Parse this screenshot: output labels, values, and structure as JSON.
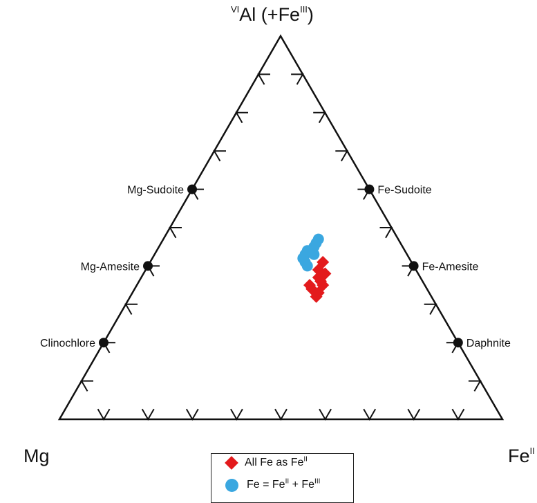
{
  "chart_data": {
    "type": "ternary-scatter",
    "apices": {
      "top": {
        "sup": "VI",
        "main": "Al (+Fe",
        "sup2": "III",
        "tail": ")"
      },
      "left": "Mg",
      "right": {
        "main": "Fe",
        "sup": "II"
      }
    },
    "end_members": [
      {
        "name": "Mg-Sudoite",
        "top": 0.6,
        "left": 0.4,
        "right": 0.0,
        "label_side": "left"
      },
      {
        "name": "Mg-Amesite",
        "top": 0.4,
        "left": 0.6,
        "right": 0.0,
        "label_side": "left"
      },
      {
        "name": "Clinochlore",
        "top": 0.2,
        "left": 0.8,
        "right": 0.0,
        "label_side": "left"
      },
      {
        "name": "Fe-Sudoite",
        "top": 0.6,
        "left": 0.0,
        "right": 0.4,
        "label_side": "right"
      },
      {
        "name": "Fe-Amesite",
        "top": 0.4,
        "left": 0.0,
        "right": 0.6,
        "label_side": "right"
      },
      {
        "name": "Daphnite",
        "top": 0.2,
        "left": 0.0,
        "right": 0.8,
        "label_side": "right"
      }
    ],
    "ticks_per_side": 9,
    "series": [
      {
        "legend": {
          "pre": "All Fe as Fe",
          "sup": "II"
        },
        "marker": "diamond",
        "color": "#e31a1c",
        "points": [
          {
            "top": 0.41,
            "right": 0.39
          },
          {
            "top": 0.39,
            "right": 0.39
          },
          {
            "top": 0.37,
            "right": 0.4
          },
          {
            "top": 0.36,
            "right": 0.41
          },
          {
            "top": 0.35,
            "right": 0.42
          },
          {
            "top": 0.34,
            "right": 0.4
          },
          {
            "top": 0.33,
            "right": 0.42
          },
          {
            "top": 0.32,
            "right": 0.42
          },
          {
            "top": 0.35,
            "right": 0.39
          },
          {
            "top": 0.38,
            "right": 0.41
          }
        ]
      },
      {
        "legend": {
          "pre": "Fe = Fe",
          "sup": "II",
          "mid": " + Fe",
          "sup2": "III"
        },
        "marker": "circle",
        "color": "#3aa7e0",
        "points": [
          {
            "top": 0.47,
            "right": 0.35
          },
          {
            "top": 0.46,
            "right": 0.35
          },
          {
            "top": 0.45,
            "right": 0.35
          },
          {
            "top": 0.44,
            "right": 0.35
          },
          {
            "top": 0.43,
            "right": 0.34
          },
          {
            "top": 0.42,
            "right": 0.34
          },
          {
            "top": 0.41,
            "right": 0.35
          },
          {
            "top": 0.4,
            "right": 0.36
          },
          {
            "top": 0.43,
            "right": 0.36
          },
          {
            "top": 0.44,
            "right": 0.34
          }
        ]
      }
    ]
  }
}
